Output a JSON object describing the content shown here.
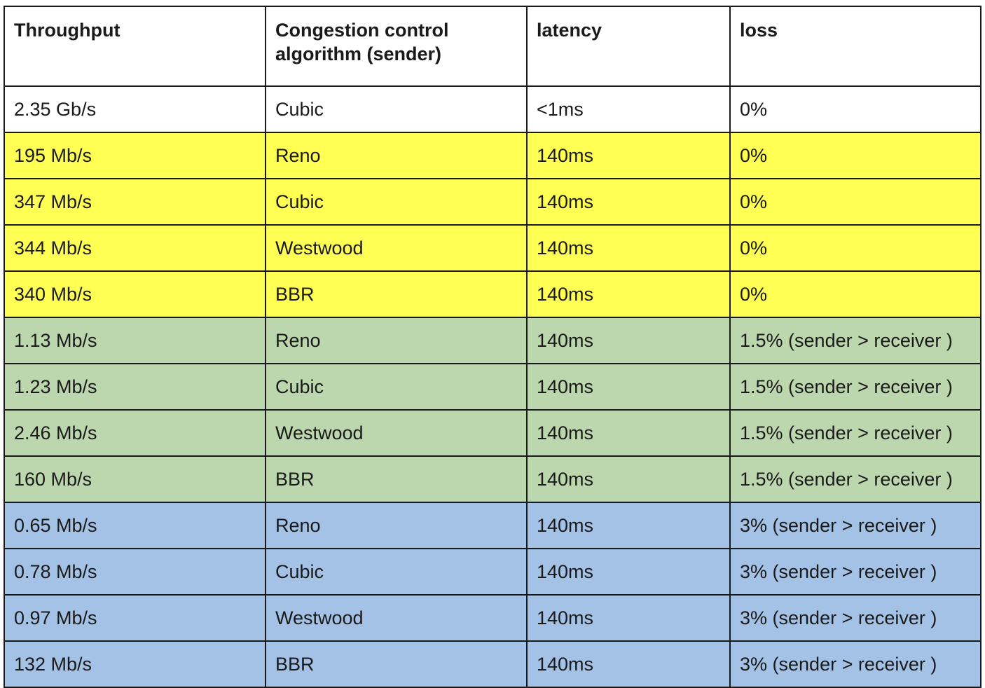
{
  "table": {
    "headers": [
      {
        "line1": "Throughput",
        "line2": ""
      },
      {
        "line1": "Congestion control",
        "line2": "algorithm (sender)"
      },
      {
        "line1": "latency",
        "line2": ""
      },
      {
        "line1": "loss",
        "line2": ""
      }
    ],
    "rows": [
      {
        "band": "white",
        "throughput": "2.35 Gb/s",
        "algorithm": "Cubic",
        "latency": "<1ms",
        "loss": "0%"
      },
      {
        "band": "yellow",
        "throughput": "195 Mb/s",
        "algorithm": "Reno",
        "latency": "140ms",
        "loss": "0%"
      },
      {
        "band": "yellow",
        "throughput": "347 Mb/s",
        "algorithm": "Cubic",
        "latency": "140ms",
        "loss": "0%"
      },
      {
        "band": "yellow",
        "throughput": "344 Mb/s",
        "algorithm": "Westwood",
        "latency": "140ms",
        "loss": "0%"
      },
      {
        "band": "yellow",
        "throughput": "340 Mb/s",
        "algorithm": "BBR",
        "latency": "140ms",
        "loss": "0%"
      },
      {
        "band": "green",
        "throughput": "1.13 Mb/s",
        "algorithm": "Reno",
        "latency": "140ms",
        "loss": "1.5% (sender > receiver )"
      },
      {
        "band": "green",
        "throughput": "1.23 Mb/s",
        "algorithm": "Cubic",
        "latency": "140ms",
        "loss": "1.5% (sender > receiver )"
      },
      {
        "band": "green",
        "throughput": "2.46 Mb/s",
        "algorithm": "Westwood",
        "latency": "140ms",
        "loss": "1.5% (sender > receiver )"
      },
      {
        "band": "green",
        "throughput": "160 Mb/s",
        "algorithm": "BBR",
        "latency": "140ms",
        "loss": "1.5% (sender > receiver )"
      },
      {
        "band": "blue",
        "throughput": "0.65 Mb/s",
        "algorithm": "Reno",
        "latency": "140ms",
        "loss": "3% (sender > receiver )"
      },
      {
        "band": "blue",
        "throughput": "0.78 Mb/s",
        "algorithm": "Cubic",
        "latency": "140ms",
        "loss": "3% (sender > receiver )"
      },
      {
        "band": "blue",
        "throughput": "0.97 Mb/s",
        "algorithm": "Westwood",
        "latency": "140ms",
        "loss": "3% (sender > receiver )"
      },
      {
        "band": "blue",
        "throughput": "132 Mb/s",
        "algorithm": "BBR",
        "latency": "140ms",
        "loss": "3% (sender > receiver )"
      }
    ],
    "band_colors": {
      "white": "#ffffff",
      "yellow": "#ffff54",
      "green": "#bcd6ae",
      "blue": "#a4c2e6"
    }
  }
}
